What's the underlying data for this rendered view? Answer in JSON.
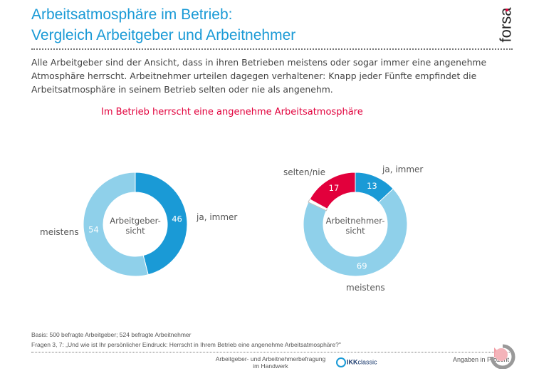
{
  "header": {
    "title_line1": "Arbeitsatmosphäre im Betrieb:",
    "title_line2": "Vergleich Arbeitgeber und Arbeitnehmer",
    "logo": "forsa."
  },
  "intro": "Alle Arbeitgeber sind der Ansicht, dass in ihren Betrieben meistens oder sogar immer eine angenehme Atmosphäre herrscht. Arbeitnehmer urteilen dagegen verhaltener: Knapp jeder Fünfte empfindet die Arbeitsatmosphäre in seinem Betrieb selten oder nie als angenehm.",
  "colors": {
    "title": "#1a9ad6",
    "ja_immer": "#1a9ad6",
    "meistens": "#8fd0ea",
    "selten_nie": "#e2003c",
    "unlabeled": "#ffffff"
  },
  "chart_data": [
    {
      "type": "pie",
      "donut": true,
      "title": "Im Betrieb herrscht eine angenehme Arbeitsatmosphäre",
      "center_label": [
        "Arbeitgeber-",
        "sicht"
      ],
      "slices": [
        {
          "label": "ja, immer",
          "value": 46,
          "color": "#1a9ad6"
        },
        {
          "label": "meistens",
          "value": 54,
          "color": "#8fd0ea"
        }
      ]
    },
    {
      "type": "pie",
      "donut": true,
      "center_label": [
        "Arbeitnehmer-",
        "sicht"
      ],
      "slices": [
        {
          "label": "ja, immer",
          "value": 13,
          "color": "#1a9ad6"
        },
        {
          "label": "meistens",
          "value": 69,
          "color": "#8fd0ea"
        },
        {
          "label": "",
          "value": 1,
          "color": "#ffffff"
        },
        {
          "label": "selten/nie",
          "value": 17,
          "color": "#e2003c"
        }
      ]
    }
  ],
  "footer": {
    "basis": "Basis: 500 befragte Arbeitgeber; 524 befragte Arbeitnehmer",
    "question": "Fragen 3, 7:   „Und wie ist Ihr persönlicher Eindruck: Herrscht in Ihrem Betrieb eine angenehme Arbeitsatmosphäre?\"",
    "survey_line1": "Arbeitgeber- und Arbeitnehmerbefragung",
    "survey_line2": "im Handwerk",
    "sponsor_logo": "IKK classic",
    "unit_note": "Angaben in Prozent"
  }
}
